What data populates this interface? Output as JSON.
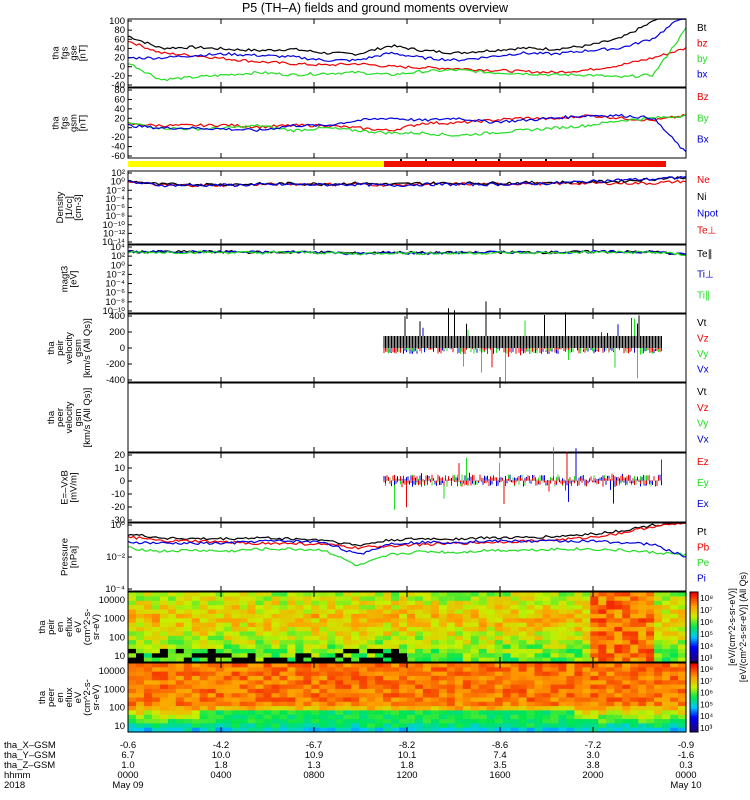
{
  "title": "P5 (TH–A) fields and ground moments overview",
  "colors": {
    "black": "#000000",
    "red": "#ee0000",
    "green": "#22dd22",
    "blue": "#0000dd",
    "yellow": "#ffff00",
    "barRed": "#ee1100"
  },
  "chart_data": [
    {
      "type": "line",
      "panel": "fgs_gse",
      "ylabel": [
        "tha",
        "fgs",
        "gse",
        "[nT]"
      ],
      "ylim": [
        -40,
        100
      ],
      "ticks": [
        "100",
        "80",
        "60",
        "40",
        "20",
        "0",
        "-20",
        "-40"
      ],
      "series": [
        {
          "name": "Bt",
          "color": "black",
          "values": [
            65,
            40,
            42,
            38,
            35,
            38,
            30,
            28,
            45,
            35,
            30,
            35,
            40,
            38,
            45,
            60,
            95,
            140
          ]
        },
        {
          "name": "bz",
          "color": "red",
          "values": [
            55,
            30,
            25,
            18,
            12,
            8,
            5,
            8,
            2,
            0,
            -2,
            -5,
            -8,
            -10,
            -5,
            5,
            20,
            40
          ]
        },
        {
          "name": "by",
          "color": "green",
          "values": [
            10,
            -25,
            -20,
            -15,
            -10,
            -15,
            -12,
            -10,
            -15,
            -8,
            -5,
            -10,
            -12,
            -15,
            -15,
            -20,
            -15,
            80
          ]
        },
        {
          "name": "bx",
          "color": "blue",
          "values": [
            20,
            20,
            25,
            28,
            25,
            22,
            15,
            15,
            30,
            20,
            15,
            22,
            30,
            28,
            35,
            40,
            60,
            110
          ]
        }
      ]
    },
    {
      "type": "line",
      "panel": "fgs_gsm",
      "ylabel": [
        "tha",
        "fgs",
        "gsm",
        "[nT]"
      ],
      "ylim": [
        -60,
        80
      ],
      "ticks": [
        "80",
        "60",
        "40",
        "20",
        "0",
        "-20",
        "-40",
        "-60"
      ],
      "series": [
        {
          "name": "Bz",
          "color": "red",
          "values": [
            8,
            5,
            5,
            6,
            2,
            5,
            5,
            0,
            -5,
            10,
            10,
            15,
            20,
            18,
            25,
            20,
            15,
            25
          ]
        },
        {
          "name": "By",
          "color": "green",
          "values": [
            10,
            0,
            -2,
            0,
            5,
            -5,
            0,
            -5,
            -10,
            -10,
            -15,
            -10,
            -5,
            0,
            5,
            15,
            20,
            25
          ]
        },
        {
          "name": "Bx",
          "color": "blue",
          "values": [
            5,
            0,
            0,
            -2,
            -5,
            5,
            5,
            15,
            20,
            15,
            20,
            12,
            15,
            20,
            25,
            25,
            20,
            -50
          ]
        }
      ]
    },
    {
      "type": "line",
      "panel": "density",
      "ylabel": [
        "Density",
        "[1/cc]",
        "[cm-3]"
      ],
      "scale": "log",
      "ylim": [
        -15,
        3
      ],
      "ticks": [
        "10²",
        "10⁰",
        "10⁻²",
        "10⁻⁴",
        "10⁻⁶",
        "10⁻⁸",
        "10⁻¹⁰",
        "10⁻¹²",
        "10⁻¹⁴"
      ],
      "series": [
        {
          "name": "Ne",
          "color": "red",
          "values": [
            0.5,
            -0.5,
            -0.5,
            -0.5,
            -0.3,
            -0.2,
            -0.3,
            -0.2,
            -0.5,
            -0.2,
            -0.2,
            -0.2,
            -0.1,
            -0.1,
            0,
            0,
            0,
            0.5
          ]
        },
        {
          "name": "Ni",
          "color": "black",
          "values": [
            0.5,
            -0.3,
            -0.3,
            -0.3,
            -0.2,
            -0.1,
            -0.2,
            0,
            -0.3,
            0,
            0,
            0,
            0.1,
            0.2,
            0.3,
            0.5,
            1,
            1.5
          ]
        },
        {
          "name": "Npot",
          "color": "blue",
          "values": [
            0.3,
            -0.5,
            -0.5,
            -0.5,
            -0.4,
            -0.3,
            -0.4,
            -0.3,
            -0.6,
            -0.3,
            -0.3,
            -0.3,
            -0.2,
            0,
            0.4,
            0.8,
            1,
            1.5
          ]
        },
        {
          "name": "Te⊥",
          "color": "red",
          "values": []
        }
      ]
    },
    {
      "type": "line",
      "panel": "magt3",
      "ylabel": [
        "magt3",
        "[eV]"
      ],
      "scale": "log",
      "ylim": [
        -10,
        4
      ],
      "ticks": [
        "10⁴",
        "10²",
        "10⁰",
        "10⁻²",
        "10⁻⁴",
        "10⁻⁶",
        "10⁻⁸",
        "10⁻¹⁰"
      ],
      "series": [
        {
          "name": "Te∥",
          "color": "black",
          "values": [
            2.6,
            2.6,
            2.6,
            2.6,
            2.5,
            2.5,
            2.5,
            2.3,
            2.5,
            2.4,
            2.4,
            2.5,
            2.5,
            2.5,
            2.6,
            2.6,
            2.6,
            2.0
          ]
        },
        {
          "name": "Ti⊥",
          "color": "blue",
          "values": [
            2.6,
            2.6,
            2.6,
            2.6,
            2.5,
            2.6,
            2.5,
            2.2,
            2.4,
            2.3,
            2.4,
            2.5,
            2.5,
            2.5,
            2.6,
            2.6,
            2.6,
            2.0
          ]
        },
        {
          "name": "Ti∥",
          "color": "green",
          "values": [
            2.5,
            2.5,
            2.5,
            2.5,
            2.4,
            2.5,
            2.4,
            2.2,
            2.4,
            2.3,
            2.3,
            2.4,
            2.4,
            2.4,
            2.5,
            2.5,
            2.5,
            2.0
          ]
        }
      ]
    },
    {
      "type": "line",
      "panel": "peir_velocity",
      "ylabel": [
        "tha",
        "peir",
        "velocity",
        "gsm",
        "[km/s (All Qs)]"
      ],
      "ylim": [
        -400,
        400
      ],
      "ticks": [
        "400",
        "200",
        "0",
        "-200",
        "-400"
      ],
      "series": [
        {
          "name": "Vt",
          "color": "black",
          "values": []
        },
        {
          "name": "Vz",
          "color": "red",
          "values": []
        },
        {
          "name": "Vy",
          "color": "green",
          "values": []
        },
        {
          "name": "Vx",
          "color": "blue",
          "values": []
        }
      ]
    },
    {
      "type": "line",
      "panel": "peer_velocity",
      "ylabel": [
        "tha",
        "peer",
        "velocity",
        "gsm",
        "[km/s (All Qs)]"
      ],
      "ylim": [
        0,
        1
      ],
      "ticks": [],
      "series": [
        {
          "name": "Vt",
          "color": "black",
          "values": []
        },
        {
          "name": "Vz",
          "color": "red",
          "values": []
        },
        {
          "name": "Vy",
          "color": "green",
          "values": []
        },
        {
          "name": "Vx",
          "color": "blue",
          "values": []
        }
      ]
    },
    {
      "type": "line",
      "panel": "efield",
      "ylabel": [
        "E=–VxB",
        "[mV/m]"
      ],
      "ylim": [
        -30,
        20
      ],
      "ticks": [
        "20",
        "10",
        "0",
        "-10",
        "-20",
        "-30"
      ],
      "series": [
        {
          "name": "Ez",
          "color": "red",
          "values": []
        },
        {
          "name": "Ey",
          "color": "green",
          "values": []
        },
        {
          "name": "Ex",
          "color": "blue",
          "values": []
        }
      ]
    },
    {
      "type": "line",
      "panel": "pressure",
      "ylabel": [
        "Pressure",
        "[nPa]"
      ],
      "scale": "log",
      "ylim": [
        -5,
        1
      ],
      "ticks": [
        "10⁰",
        "10⁻²",
        "10⁻⁴"
      ],
      "series": [
        {
          "name": "Pt",
          "color": "black",
          "values": [
            0,
            -0.3,
            -0.4,
            -0.4,
            -0.3,
            -0.4,
            -0.5,
            -1,
            -0.5,
            -0.4,
            -0.4,
            -0.3,
            -0.3,
            -0.2,
            0,
            0.3,
            0.8,
            1.1
          ]
        },
        {
          "name": "Pb",
          "color": "red",
          "values": [
            -0.2,
            -0.6,
            -0.6,
            -0.7,
            -0.8,
            -0.8,
            -0.9,
            -1.2,
            -1,
            -0.9,
            -0.8,
            -0.7,
            -0.6,
            -0.5,
            -0.3,
            0.1,
            0.7,
            1.0
          ]
        },
        {
          "name": "Pe",
          "color": "green",
          "values": [
            -1.2,
            -1.5,
            -1.4,
            -1.5,
            -1.3,
            -1.3,
            -1.4,
            -2.8,
            -1.8,
            -1.5,
            -1.6,
            -1.4,
            -1.4,
            -1.3,
            -1.3,
            -1.4,
            -1.6,
            -1.8
          ]
        },
        {
          "name": "Pi",
          "color": "blue",
          "values": [
            -0.7,
            -0.8,
            -0.8,
            -0.8,
            -0.6,
            -0.6,
            -0.7,
            -1.8,
            -0.8,
            -0.7,
            -0.7,
            -0.6,
            -0.6,
            -0.6,
            -0.6,
            -0.7,
            -0.9,
            -2.0
          ]
        }
      ]
    },
    {
      "type": "heatmap",
      "panel": "peir_en_eflux",
      "ylabel": [
        "tha",
        "peir",
        "en",
        "eflux",
        "eV",
        "(cm^2-s-",
        "sr-eV)"
      ],
      "ytick_labels": [
        "10000",
        "1000",
        "100",
        "10"
      ],
      "colorbar": [
        "10⁸",
        "10⁷",
        "10⁶",
        "10⁵",
        "10⁴",
        "10³"
      ]
    },
    {
      "type": "heatmap",
      "panel": "peer_en_eflux",
      "ylabel": [
        "tha",
        "peer",
        "en",
        "eflux",
        "eV",
        "(cm^2-s-",
        "sr-eV)"
      ],
      "ytick_labels": [
        "10000",
        "1000",
        "100",
        "10"
      ],
      "colorbar": [
        "10⁸",
        "10⁷",
        "10⁶",
        "10⁵",
        "10⁴",
        "10³"
      ]
    }
  ],
  "right_labels": {
    "fgs_gse": [
      "Bt",
      "bz",
      "by",
      "bx"
    ],
    "fgs_gsm": [
      "Bz",
      "By",
      "Bx"
    ],
    "density": [
      "Ne",
      "Ni",
      "Npot",
      "Te⊥"
    ],
    "magt3": [
      "Te∥",
      "Ti⊥",
      "Ti∥"
    ],
    "peir_velocity": [
      "Vt",
      "Vz",
      "Vy",
      "Vx"
    ],
    "peer_velocity": [
      "Vt",
      "Vz",
      "Vy",
      "Vx"
    ],
    "efield": [
      "Ez",
      "Ey",
      "Ex"
    ],
    "pressure": [
      "Pt",
      "Pb",
      "Pe",
      "Pi"
    ]
  },
  "colorbar_label_top": "[eV/(cm^2-s-sr-eV)]",
  "colorbar_label_bottom": "[eV/(cm^2-s-sr-eV)] (All Qs)",
  "bottom_axis": {
    "row_labels": [
      "tha_X–GSM",
      "tha_Y–GSM",
      "tha_Z–GSM",
      "hhmm",
      "2018"
    ],
    "columns": [
      [
        "-0.6",
        "6.7",
        "1.0",
        "0000",
        "May 09"
      ],
      [
        "-4.2",
        "10.0",
        "1.8",
        "0400",
        ""
      ],
      [
        "-6.7",
        "10.9",
        "1.3",
        "0800",
        ""
      ],
      [
        "-8.2",
        "10.1",
        "1.8",
        "1200",
        ""
      ],
      [
        "-8.6",
        "7.4",
        "3.5",
        "1600",
        ""
      ],
      [
        "-7.2",
        "3.0",
        "3.8",
        "2000",
        ""
      ],
      [
        "-0.9",
        "-1.6",
        "0.3",
        "0000",
        "May 10"
      ]
    ]
  }
}
